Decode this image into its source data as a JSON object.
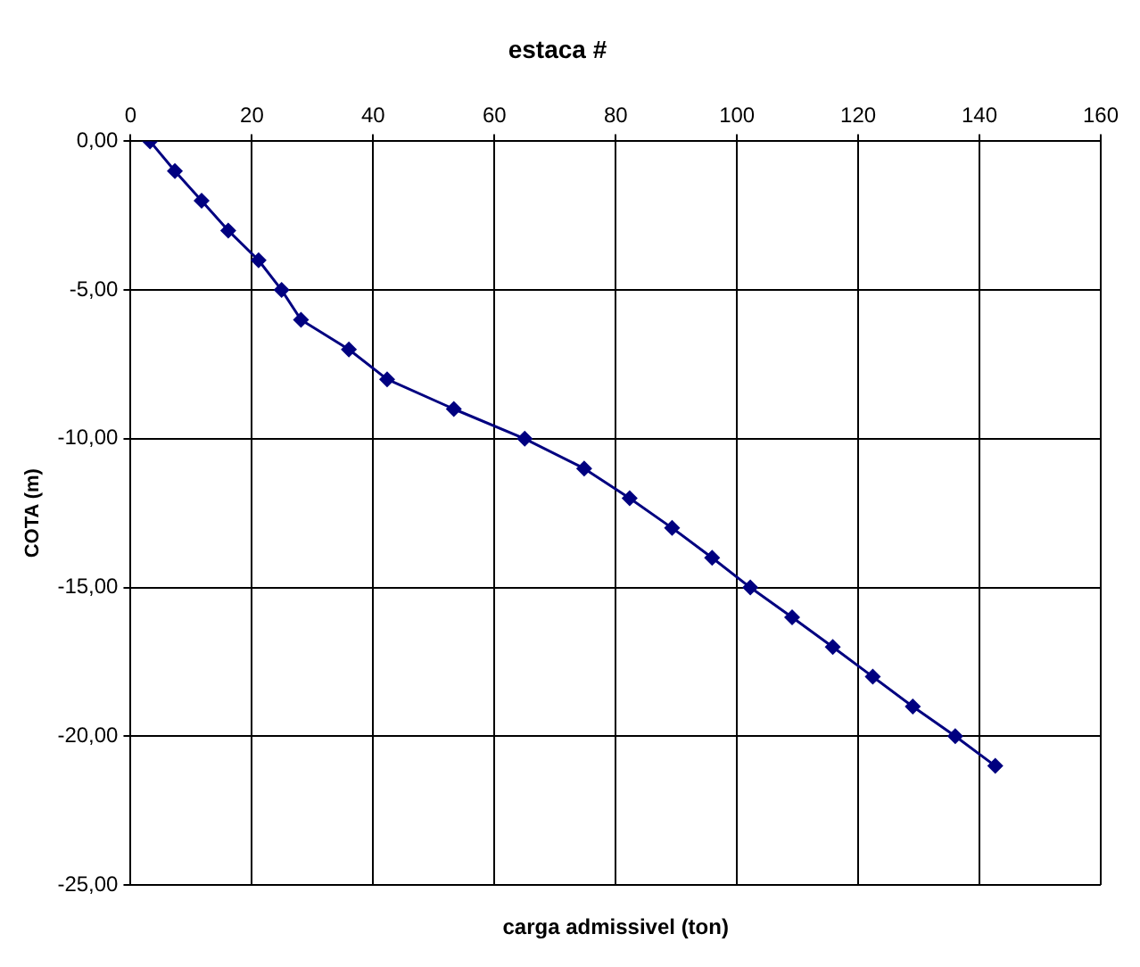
{
  "chart_data": {
    "type": "line",
    "title": "estaca #",
    "xlabel": "carga admissivel (ton)",
    "ylabel": "COTA (m)",
    "x": [
      3.2,
      7.3,
      11.7,
      16.1,
      21.1,
      24.9,
      28.1,
      36,
      42.3,
      53.3,
      65,
      74.8,
      82.3,
      89.3,
      95.9,
      102.2,
      109.1,
      115.8,
      122.4,
      129,
      136,
      142.6
    ],
    "series": [
      {
        "color": "#000080",
        "values": [
          0,
          -1,
          -2,
          -3,
          -4,
          -5,
          -6,
          -7,
          -8,
          -9,
          -10,
          -11,
          -12,
          -13,
          -14,
          -15,
          -16,
          -17,
          -18,
          -19,
          -20,
          -21
        ]
      }
    ],
    "xlim": [
      0,
      160
    ],
    "xticks": [
      0,
      20,
      40,
      60,
      80,
      100,
      120,
      140,
      160
    ],
    "ylim": [
      -25,
      0
    ],
    "yticks": [
      {
        "value": 0,
        "label": "0,00"
      },
      {
        "value": -5,
        "label": "-5,00"
      },
      {
        "value": -10,
        "label": "-10,00"
      },
      {
        "value": -15,
        "label": "-15,00"
      },
      {
        "value": -20,
        "label": "-20,00"
      },
      {
        "value": -25,
        "label": "-25,00"
      }
    ],
    "grid": true,
    "marker": "diamond",
    "line_style": "solid",
    "legend": false
  }
}
